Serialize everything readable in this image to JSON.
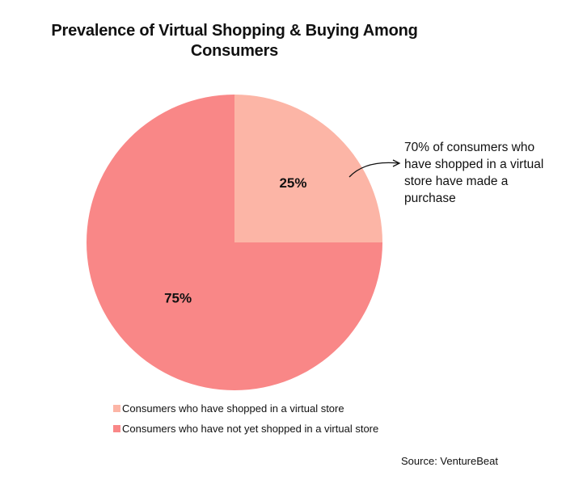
{
  "chart_data": {
    "type": "pie",
    "title": "Prevalence of Virtual Shopping & Buying Among Consumers",
    "slices": [
      {
        "label": "Consumers who have shopped in a virtual store",
        "value": 25,
        "value_label": "25%",
        "color": "#fcb5a6"
      },
      {
        "label": "Consumers who have not yet shopped in a virtual store",
        "value": 75,
        "value_label": "75%",
        "color": "#f98787"
      }
    ],
    "annotation": "70% of consumers who have shopped in a virtual store have made a purchase",
    "legend_position": "bottom",
    "source": "Source: VentureBeat"
  }
}
